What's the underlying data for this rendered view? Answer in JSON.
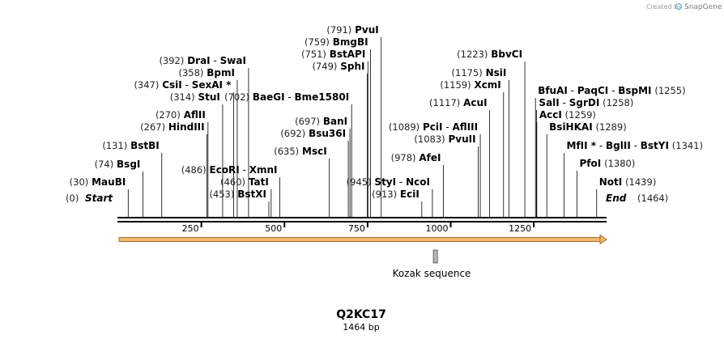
{
  "map": {
    "name": "Q2KC17",
    "length_label": "1464 bp",
    "length": 1464,
    "credit": "Created by",
    "brand": "SnapGene"
  },
  "ruler": {
    "ticks": [
      250,
      500,
      750,
      1000,
      1250
    ]
  },
  "start_label": {
    "pos": 0,
    "text": "Start"
  },
  "end_label": {
    "pos": 1464,
    "text": "End"
  },
  "feature": {
    "name": "Kozak sequence",
    "pos": 954
  },
  "cds": {
    "start": 0,
    "end": 1464,
    "color": "#f5a623"
  },
  "sites": [
    {
      "pos": 30,
      "names": [
        "MauBI"
      ],
      "side": "right"
    },
    {
      "pos": 74,
      "names": [
        "BsgI"
      ],
      "side": "right"
    },
    {
      "pos": 131,
      "names": [
        "BstBI"
      ],
      "side": "right"
    },
    {
      "pos": 267,
      "names": [
        "HindIII"
      ],
      "side": "right"
    },
    {
      "pos": 270,
      "names": [
        "AflII"
      ],
      "side": "right"
    },
    {
      "pos": 314,
      "names": [
        "StuI"
      ],
      "side": "right"
    },
    {
      "pos": 347,
      "names": [
        "CsiI",
        "SexAI *"
      ],
      "side": "right"
    },
    {
      "pos": 358,
      "names": [
        "BpmI"
      ],
      "side": "right"
    },
    {
      "pos": 392,
      "names": [
        "DraI",
        "SwaI"
      ],
      "side": "right"
    },
    {
      "pos": 453,
      "names": [
        "BstXI"
      ],
      "side": "right"
    },
    {
      "pos": 460,
      "names": [
        "TatI"
      ],
      "side": "right"
    },
    {
      "pos": 486,
      "names": [
        "EcoRI",
        "XmnI"
      ],
      "side": "right"
    },
    {
      "pos": 635,
      "names": [
        "MscI"
      ],
      "side": "right"
    },
    {
      "pos": 692,
      "names": [
        "Bsu36I"
      ],
      "side": "right"
    },
    {
      "pos": 697,
      "names": [
        "BanI"
      ],
      "side": "right"
    },
    {
      "pos": 702,
      "names": [
        "BaeGI",
        "Bme1580I"
      ],
      "side": "right"
    },
    {
      "pos": 749,
      "names": [
        "SphI"
      ],
      "side": "right"
    },
    {
      "pos": 751,
      "names": [
        "BstAPI"
      ],
      "side": "right"
    },
    {
      "pos": 759,
      "names": [
        "BmgBI"
      ],
      "side": "right"
    },
    {
      "pos": 791,
      "names": [
        "PvuI"
      ],
      "side": "right"
    },
    {
      "pos": 913,
      "names": [
        "EciI"
      ],
      "side": "right"
    },
    {
      "pos": 945,
      "names": [
        "StyI",
        "NcoI"
      ],
      "side": "right"
    },
    {
      "pos": 978,
      "names": [
        "AfeI"
      ],
      "side": "right"
    },
    {
      "pos": 1083,
      "names": [
        "PvuII"
      ],
      "side": "right"
    },
    {
      "pos": 1089,
      "names": [
        "PciI",
        "AflIII"
      ],
      "side": "right"
    },
    {
      "pos": 1117,
      "names": [
        "AcuI"
      ],
      "side": "right"
    },
    {
      "pos": 1159,
      "names": [
        "XcmI"
      ],
      "side": "right"
    },
    {
      "pos": 1175,
      "names": [
        "NsiI"
      ],
      "side": "right"
    },
    {
      "pos": 1223,
      "names": [
        "BbvCI"
      ],
      "side": "right"
    },
    {
      "pos": 1255,
      "names": [
        "BfuAI",
        "PaqCI",
        "BspMI"
      ],
      "side": "left"
    },
    {
      "pos": 1258,
      "names": [
        "SalI",
        "SgrDI"
      ],
      "side": "left"
    },
    {
      "pos": 1259,
      "names": [
        "AccI"
      ],
      "side": "left"
    },
    {
      "pos": 1289,
      "names": [
        "BsiHKAI"
      ],
      "side": "left"
    },
    {
      "pos": 1341,
      "names": [
        "MfII *",
        "BglII",
        "BstYI"
      ],
      "side": "left"
    },
    {
      "pos": 1380,
      "names": [
        "PfoI"
      ],
      "side": "left"
    },
    {
      "pos": 1439,
      "names": [
        "NotI"
      ],
      "side": "left"
    }
  ]
}
